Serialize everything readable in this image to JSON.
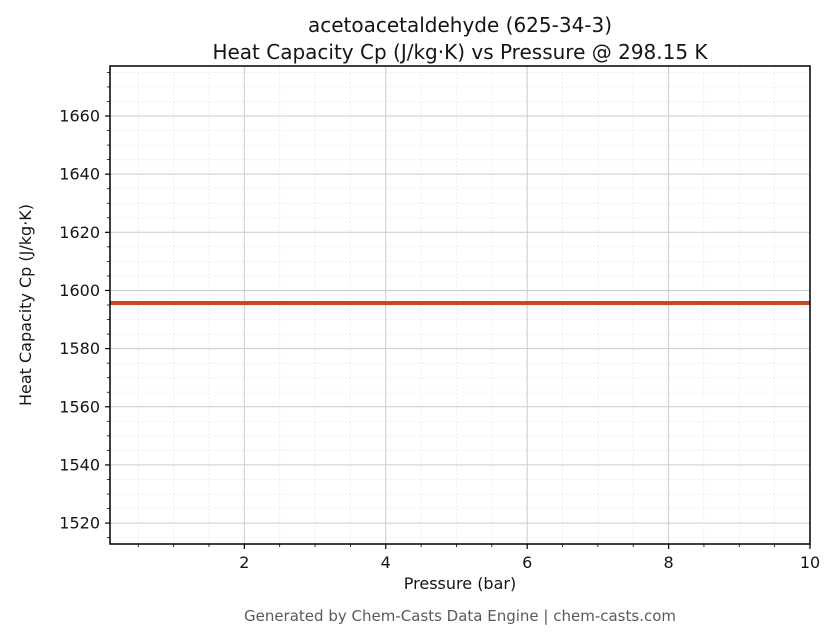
{
  "figure": {
    "title_line1": "acetoacetaldehyde (625-34-3)",
    "title_line2": "Heat Capacity Cp (J/kg·K) vs Pressure @ 298.15 K",
    "footer": "Generated by Chem-Casts Data Engine | chem-casts.com"
  },
  "chart_data": {
    "type": "line",
    "title": "acetoacetaldehyde (625-34-3) — Heat Capacity Cp (J/kg·K) vs Pressure @ 298.15 K",
    "xlabel": "Pressure (bar)",
    "ylabel": "Heat Capacity Cp (J/kg·K)",
    "xlim": [
      0.1,
      10
    ],
    "ylim": [
      1512.8,
      1677.2
    ],
    "xticks": [
      2,
      4,
      6,
      8,
      10
    ],
    "yticks": [
      1520,
      1540,
      1560,
      1580,
      1600,
      1620,
      1640,
      1660
    ],
    "x_minor_step": 0.5,
    "y_minor_step": 5,
    "grid": true,
    "legend": "none",
    "series": [
      {
        "name": "Cp",
        "x": [
          0.1,
          10
        ],
        "y": [
          1595.7,
          1595.7
        ],
        "color": "#c9461f",
        "width": 4
      }
    ]
  },
  "style": {
    "axis_frame_color": "#000000",
    "major_grid_color": "#cccccc",
    "minor_grid_color": "#dadada",
    "tick_label_color": "#151515",
    "background": "#ffffff"
  }
}
